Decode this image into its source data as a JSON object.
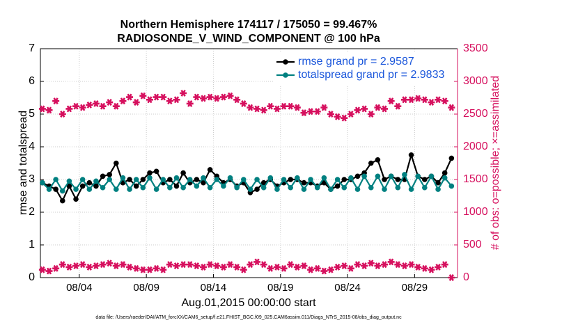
{
  "chart_data": {
    "type": "line",
    "title": "Northern Hemisphere 174117 / 175050 = 99.467%",
    "subtitle": "RADIOSONDE_V_WIND_COMPONENT @ 100 hPa",
    "x_label": "Aug.01,2015 00:00:00 start",
    "y_label": "rmse and totalspread",
    "y2_label": "# of obs: o=possible; ×=assimilated",
    "footer": "data file: /Users/raeder/DAI/ATM_forcXX/CAM6_setup/f.e21.FHIST_BGC.f09_025.CAM6assim.011/Diags_NTrS_2015-08/obs_diag_output.nc",
    "x": [
      1.25,
      1.75,
      2.25,
      2.75,
      3.25,
      3.75,
      4.25,
      4.75,
      5.25,
      5.75,
      6.25,
      6.75,
      7.25,
      7.75,
      8.25,
      8.75,
      9.25,
      9.75,
      10.25,
      10.75,
      11.25,
      11.75,
      12.25,
      12.75,
      13.25,
      13.75,
      14.25,
      14.75,
      15.25,
      15.75,
      16.25,
      16.75,
      17.25,
      17.75,
      18.25,
      18.75,
      19.25,
      19.75,
      20.25,
      20.75,
      21.25,
      21.75,
      22.25,
      22.75,
      23.25,
      23.75,
      24.25,
      24.75,
      25.25,
      25.75,
      26.25,
      26.75,
      27.25,
      27.75,
      28.25,
      28.75,
      29.25,
      29.75,
      30.25,
      30.75,
      31.25,
      31.75
    ],
    "xlim": [
      1.1,
      32.2
    ],
    "xticks": [
      {
        "value": 4,
        "label": "08/04"
      },
      {
        "value": 9,
        "label": "08/09"
      },
      {
        "value": 14,
        "label": "08/14"
      },
      {
        "value": 19,
        "label": "08/19"
      },
      {
        "value": 24,
        "label": "08/24"
      },
      {
        "value": 29,
        "label": "08/29"
      }
    ],
    "ylim": [
      0,
      7
    ],
    "yticks": [
      0,
      1,
      2,
      3,
      4,
      5,
      6,
      7
    ],
    "y2lim": [
      0,
      3500
    ],
    "y2ticks": [
      0,
      500,
      1000,
      1500,
      2000,
      2500,
      3000,
      3500
    ],
    "grid": true,
    "legend": "upper right",
    "series": [
      {
        "name": "rmse grand pr = 2.9587",
        "color": "#000000",
        "marker": "circle",
        "line": true,
        "values": [
          2.9,
          2.8,
          2.7,
          2.35,
          2.8,
          2.4,
          2.8,
          2.9,
          2.8,
          3.1,
          3.15,
          3.5,
          2.9,
          3.0,
          2.8,
          3.0,
          3.2,
          3.25,
          2.9,
          3.0,
          2.8,
          3.2,
          2.9,
          3.0,
          2.9,
          3.3,
          3.1,
          2.9,
          3.0,
          2.8,
          2.9,
          2.6,
          2.7,
          2.9,
          3.0,
          2.8,
          2.9,
          3.0,
          3.0,
          2.9,
          2.9,
          2.8,
          2.9,
          2.7,
          2.8,
          3.0,
          3.0,
          3.1,
          3.2,
          3.5,
          3.6,
          3.0,
          3.1,
          3.0,
          3.0,
          3.75,
          3.1,
          3.0,
          3.1,
          2.9,
          3.2,
          3.65
        ]
      },
      {
        "name": "totalspread grand pr = 2.9833",
        "color": "#008080",
        "marker": "circle",
        "line": true,
        "values": [
          2.9,
          2.7,
          3.0,
          2.65,
          2.95,
          2.7,
          3.0,
          2.7,
          2.95,
          2.75,
          3.0,
          2.7,
          3.05,
          2.7,
          3.0,
          2.75,
          3.05,
          2.7,
          3.0,
          2.75,
          3.05,
          2.75,
          3.0,
          2.8,
          3.05,
          2.75,
          3.0,
          2.8,
          3.05,
          2.75,
          3.0,
          2.7,
          3.0,
          2.75,
          3.05,
          2.7,
          3.0,
          2.75,
          3.05,
          2.7,
          3.0,
          2.75,
          3.05,
          2.7,
          3.0,
          2.75,
          3.05,
          2.7,
          3.1,
          2.75,
          3.1,
          2.7,
          3.1,
          2.75,
          3.15,
          2.7,
          3.1,
          2.75,
          3.1,
          2.7,
          3.05,
          2.8
        ]
      },
      {
        "color": "#d6105e",
        "marker": "star",
        "line": false,
        "axis": "y2",
        "values": [
          2580,
          2560,
          2700,
          2500,
          2580,
          2620,
          2600,
          2640,
          2660,
          2620,
          2680,
          2620,
          2700,
          2760,
          2680,
          2780,
          2720,
          2760,
          2760,
          2700,
          2720,
          2820,
          2660,
          2760,
          2740,
          2760,
          2740,
          2760,
          2780,
          2720,
          2660,
          2600,
          2580,
          2560,
          2620,
          2580,
          2620,
          2620,
          2600,
          2520,
          2540,
          2540,
          2600,
          2500,
          2460,
          2440,
          2500,
          2560,
          2580,
          2500,
          2600,
          2580,
          2700,
          2620,
          2720,
          2720,
          2740,
          2720,
          2680,
          2720,
          2700,
          2600
        ]
      },
      {
        "color": "#d6105e",
        "marker": "star",
        "line": false,
        "axis": "y2",
        "values": [
          120,
          100,
          140,
          200,
          160,
          180,
          200,
          160,
          180,
          200,
          220,
          180,
          200,
          160,
          140,
          120,
          120,
          140,
          120,
          200,
          180,
          200,
          200,
          180,
          160,
          200,
          180,
          160,
          200,
          160,
          120,
          200,
          240,
          200,
          140,
          160,
          140,
          200,
          160,
          180,
          120,
          140,
          100,
          120,
          160,
          180,
          140,
          200,
          180,
          220,
          180,
          200,
          240,
          200,
          180,
          200,
          160,
          140,
          120,
          160,
          200,
          0
        ]
      }
    ]
  }
}
